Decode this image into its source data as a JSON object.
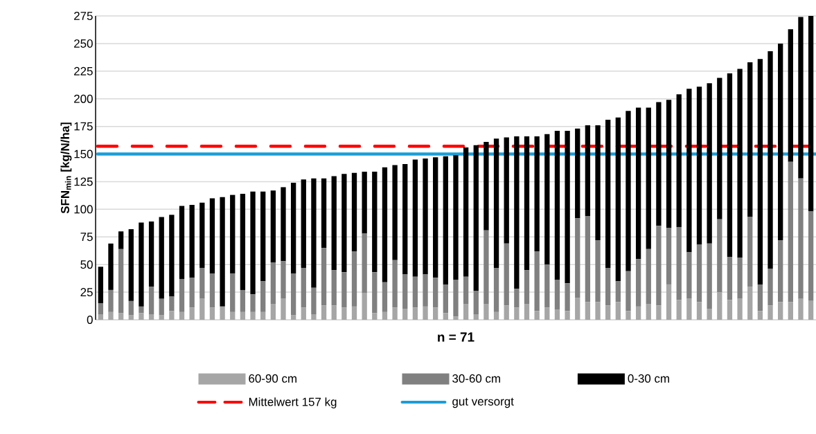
{
  "chart_data": {
    "type": "bar",
    "stacked": true,
    "xlabel": "n = 71",
    "ylabel": "SFN$_{min}$ [kg/N/ha]",
    "categories": [
      null,
      null,
      null,
      null,
      null,
      null,
      null,
      null,
      null,
      null,
      null,
      null,
      null,
      null,
      null,
      null,
      null,
      null,
      null,
      null,
      null,
      null,
      null,
      null,
      null,
      null,
      null,
      null,
      null,
      null,
      null,
      null,
      null,
      null,
      null,
      null,
      null,
      null,
      null,
      null,
      null,
      null,
      null,
      null,
      null,
      null,
      null,
      null,
      null,
      null,
      null,
      null,
      null,
      null,
      null,
      null,
      null,
      null,
      null,
      null,
      null,
      null,
      null,
      null,
      null,
      null,
      null,
      null,
      null,
      null,
      null
    ],
    "series": [
      {
        "name": "60-90 cm",
        "color": "#a6a6a6",
        "values": [
          5,
          7,
          6,
          4,
          6,
          5,
          4,
          8,
          7,
          11,
          19,
          11,
          12,
          7,
          7,
          7,
          7,
          14,
          19,
          4,
          11,
          5,
          13,
          13,
          11,
          12,
          24,
          6,
          7,
          11,
          10,
          11,
          12,
          11,
          6,
          3,
          14,
          5,
          14,
          7,
          13,
          11,
          14,
          8,
          11,
          9,
          8,
          20,
          16,
          16,
          13,
          16,
          8,
          12,
          14,
          13,
          32,
          18,
          19,
          16,
          10,
          25,
          18,
          19,
          30,
          8,
          13,
          16,
          16,
          19,
          17
        ]
      },
      {
        "name": "30-60 cm",
        "color": "#808080",
        "values": [
          10,
          20,
          58,
          13,
          6,
          25,
          15,
          13,
          30,
          27,
          28,
          31,
          0,
          35,
          20,
          16,
          28,
          38,
          34,
          38,
          36,
          24,
          52,
          32,
          32,
          50,
          54,
          37,
          27,
          43,
          31,
          28,
          29,
          27,
          26,
          33,
          25,
          21,
          67,
          40,
          56,
          17,
          31,
          54,
          39,
          27,
          25,
          72,
          78,
          56,
          34,
          19,
          36,
          43,
          50,
          72,
          51,
          66,
          42,
          52,
          59,
          66,
          39,
          37,
          63,
          24,
          33,
          56,
          127,
          109,
          81
        ]
      },
      {
        "name": "0-30 cm",
        "color": "#000000",
        "values": [
          33,
          42,
          16,
          65,
          76,
          59,
          74,
          74,
          66,
          66,
          59,
          68,
          99,
          71,
          87,
          93,
          81,
          65,
          67,
          82,
          80,
          99,
          63,
          85,
          89,
          71,
          56,
          91,
          104,
          86,
          100,
          106,
          105,
          109,
          116,
          113,
          117,
          132,
          80,
          117,
          96,
          138,
          121,
          104,
          118,
          135,
          138,
          81,
          82,
          104,
          134,
          148,
          145,
          137,
          128,
          112,
          116,
          120,
          148,
          143,
          145,
          128,
          166,
          171,
          140,
          204,
          197,
          178,
          120,
          146,
          177
        ]
      }
    ],
    "ref_lines": [
      {
        "axis": "y",
        "value": 157,
        "label": "Mittelwert 157 kg",
        "color": "#ff0000",
        "line_style": "dashed"
      },
      {
        "axis": "y",
        "value": 150,
        "label": "gut versorgt",
        "color": "#1a9ed8",
        "line_style": "solid"
      }
    ],
    "ylim": [
      0,
      275
    ],
    "yticks": [
      0,
      25,
      50,
      75,
      100,
      125,
      150,
      175,
      200,
      225,
      250,
      275
    ],
    "grid": "y",
    "legend": "bottom",
    "tick_labels": "y"
  }
}
